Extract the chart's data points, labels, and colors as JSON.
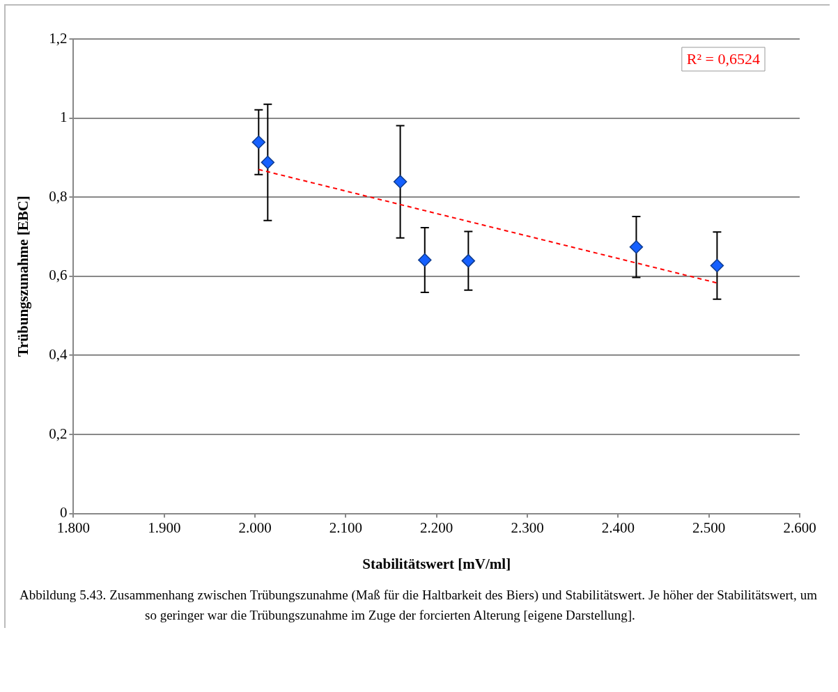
{
  "chart_data": {
    "type": "scatter",
    "xlabel": "Stabilitätswert [mV/ml]",
    "ylabel": "Trübungszunahme [EBC]",
    "xlim": [
      1800,
      2600
    ],
    "xticks": [
      {
        "value": 1800,
        "label": "1.800"
      },
      {
        "value": 1900,
        "label": "1.900"
      },
      {
        "value": 2000,
        "label": "2.000"
      },
      {
        "value": 2100,
        "label": "2.100"
      },
      {
        "value": 2200,
        "label": "2.200"
      },
      {
        "value": 2300,
        "label": "2.300"
      },
      {
        "value": 2400,
        "label": "2.400"
      },
      {
        "value": 2500,
        "label": "2.500"
      },
      {
        "value": 2600,
        "label": "2.600"
      }
    ],
    "ylim": [
      0,
      1.2
    ],
    "yticks": [
      0,
      {
        "value": 0.2,
        "label": "0,2"
      },
      {
        "value": 0.4,
        "label": "0,4"
      },
      {
        "value": 0.6,
        "label": "0,6"
      },
      {
        "value": 0.8,
        "label": "0,8"
      },
      1,
      {
        "value": 1.2,
        "label": "1,2"
      }
    ],
    "grid": "y",
    "legend": false,
    "marker": "diamond",
    "series": [
      {
        "type": "scatter",
        "color": "#1560ff",
        "x": [
          2004,
          2014,
          2160,
          2187,
          2235,
          2420,
          2509
        ],
        "values": [
          0.939,
          0.888,
          0.839,
          0.641,
          0.639,
          0.674,
          0.627
        ],
        "errors": [
          0.082,
          0.147,
          0.142,
          0.082,
          0.074,
          0.077,
          0.085
        ]
      },
      {
        "type": "line",
        "color": "#ff0000",
        "line_style": "dashed",
        "marker": "none",
        "x": [
          2004,
          2509
        ],
        "values": [
          0.87,
          0.583
        ]
      }
    ],
    "annotations": [
      "R² = 0,6524",
      "Abbildung 5.43.  Zusammenhang zwischen Trübungszunahme (Maß für die Haltbarkeit des Biers) und Stabilitätswert. Je höher der Stabilitätswert, um so geringer war die Trübungszunahme im Zuge der forcierten Alterung [eigene Darstellung]."
    ]
  }
}
